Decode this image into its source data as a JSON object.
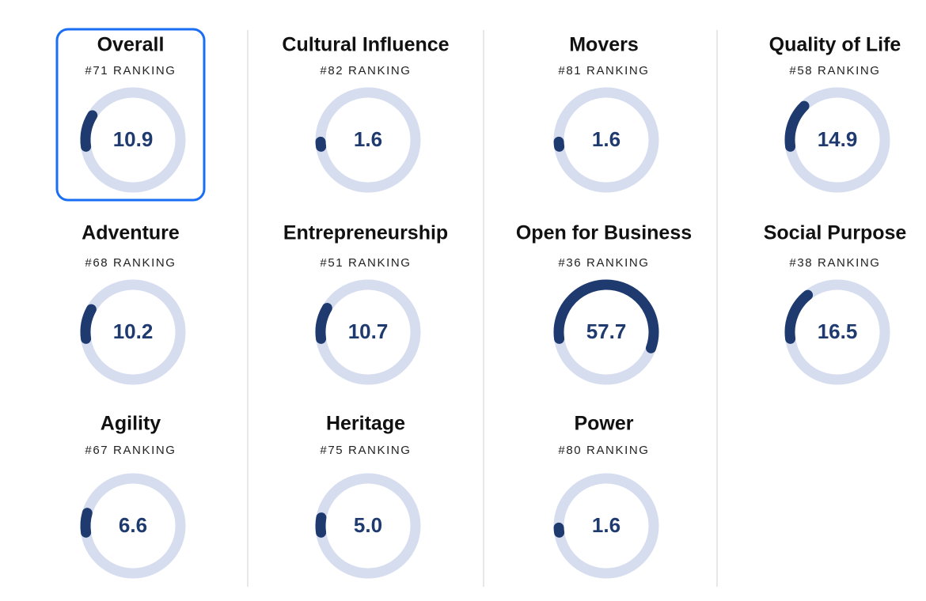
{
  "range": [
    0,
    100
  ],
  "columns": [
    [
      {
        "name": "Overall",
        "ranking": "#71 RANKING",
        "score": {
          "value": 10.9,
          "label": "10.9"
        },
        "selected": true
      },
      {
        "name": "Adventure",
        "ranking": "#68 RANKING",
        "score": {
          "value": 10.2,
          "label": "10.2"
        }
      },
      {
        "name": "Agility",
        "ranking": "#67 RANKING",
        "score": {
          "value": 6.6,
          "label": "6.6"
        }
      }
    ],
    [
      {
        "name": "Cultural Influence",
        "ranking": "#82 RANKING",
        "score": {
          "value": 1.6,
          "label": "1.6"
        }
      },
      {
        "name": "Entrepreneurship",
        "ranking": "#51 RANKING",
        "score": {
          "value": 10.7,
          "label": "10.7"
        }
      },
      {
        "name": "Heritage",
        "ranking": "#75 RANKING",
        "score": {
          "value": 5.0,
          "label": "5.0"
        }
      }
    ],
    [
      {
        "name": "Movers",
        "ranking": "#81 RANKING",
        "score": {
          "value": 1.6,
          "label": "1.6"
        }
      },
      {
        "name": "Open for Business",
        "ranking": "#36 RANKING",
        "score": {
          "value": 57.7,
          "label": "57.7"
        }
      },
      {
        "name": "Power",
        "ranking": "#80 RANKING",
        "score": {
          "value": 1.6,
          "label": "1.6"
        }
      }
    ],
    [
      {
        "name": "Quality of Life",
        "ranking": "#58 RANKING",
        "score": {
          "value": 14.9,
          "label": "14.9"
        }
      },
      {
        "name": "Social Purpose",
        "ranking": "#38 RANKING",
        "score": {
          "value": 16.5,
          "label": "16.5"
        }
      }
    ]
  ]
}
